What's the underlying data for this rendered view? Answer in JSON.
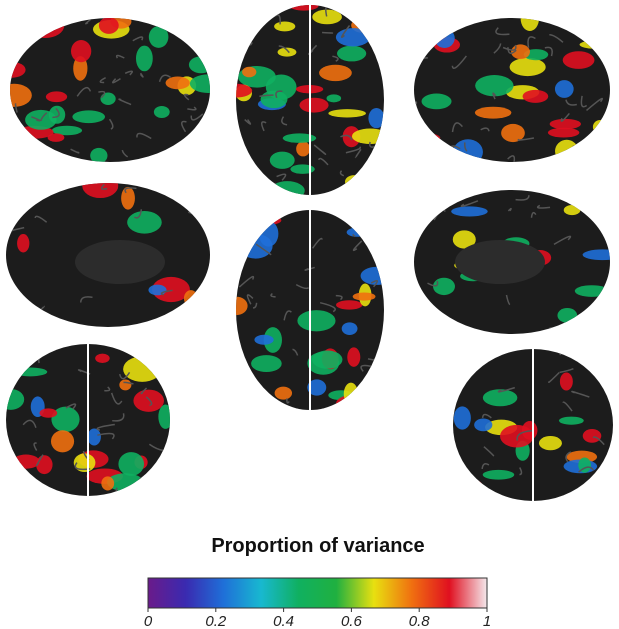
{
  "colorbar": {
    "title": "Proportion of variance",
    "lim": [
      0,
      1
    ],
    "ticks": [
      0,
      0.2,
      0.4,
      0.6,
      0.8,
      1
    ],
    "colors": [
      "#6a1b8a",
      "#3a2ab0",
      "#1f6fd8",
      "#18b8d0",
      "#10b060",
      "#20b040",
      "#e8e010",
      "#f07010",
      "#e01020",
      "#f4e8ec"
    ]
  }
}
